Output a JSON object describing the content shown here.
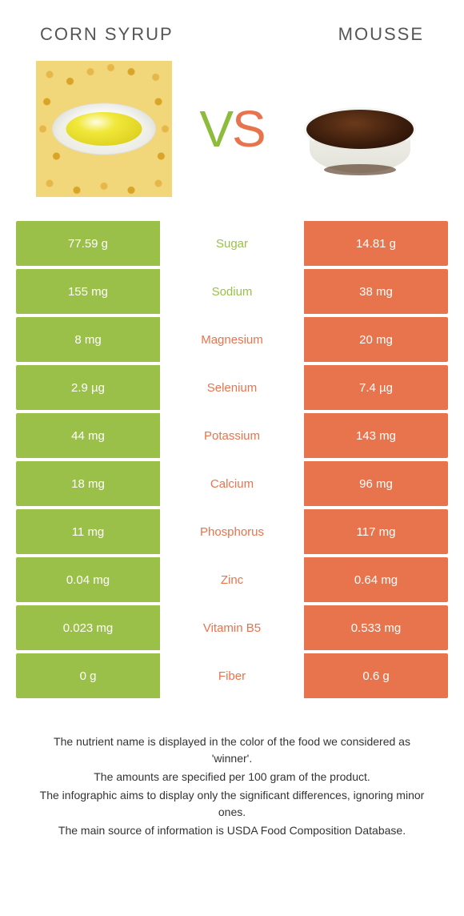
{
  "colors": {
    "left": "#9ac04a",
    "right": "#e8744e",
    "mid_text_left": "#9ac04a",
    "mid_text_right": "#e8744e"
  },
  "header": {
    "left_title": "CORN SYRUP",
    "right_title": "MOUSSE",
    "vs_v": "V",
    "vs_s": "S"
  },
  "rows": [
    {
      "left": "77.59 g",
      "name": "Sugar",
      "right": "14.81 g",
      "winner": "left"
    },
    {
      "left": "155 mg",
      "name": "Sodium",
      "right": "38 mg",
      "winner": "left"
    },
    {
      "left": "8 mg",
      "name": "Magnesium",
      "right": "20 mg",
      "winner": "right"
    },
    {
      "left": "2.9 µg",
      "name": "Selenium",
      "right": "7.4 µg",
      "winner": "right"
    },
    {
      "left": "44 mg",
      "name": "Potassium",
      "right": "143 mg",
      "winner": "right"
    },
    {
      "left": "18 mg",
      "name": "Calcium",
      "right": "96 mg",
      "winner": "right"
    },
    {
      "left": "11 mg",
      "name": "Phosphorus",
      "right": "117 mg",
      "winner": "right"
    },
    {
      "left": "0.04 mg",
      "name": "Zinc",
      "right": "0.64 mg",
      "winner": "right"
    },
    {
      "left": "0.023 mg",
      "name": "Vitamin B5",
      "right": "0.533 mg",
      "winner": "right"
    },
    {
      "left": "0 g",
      "name": "Fiber",
      "right": "0.6 g",
      "winner": "right"
    }
  ],
  "footnotes": [
    "The nutrient name is displayed in the color of the food we considered as 'winner'.",
    "The amounts are specified per 100 gram of the product.",
    "The infographic aims to display only the significant differences, ignoring minor ones.",
    "The main source of information is USDA Food Composition Database."
  ]
}
